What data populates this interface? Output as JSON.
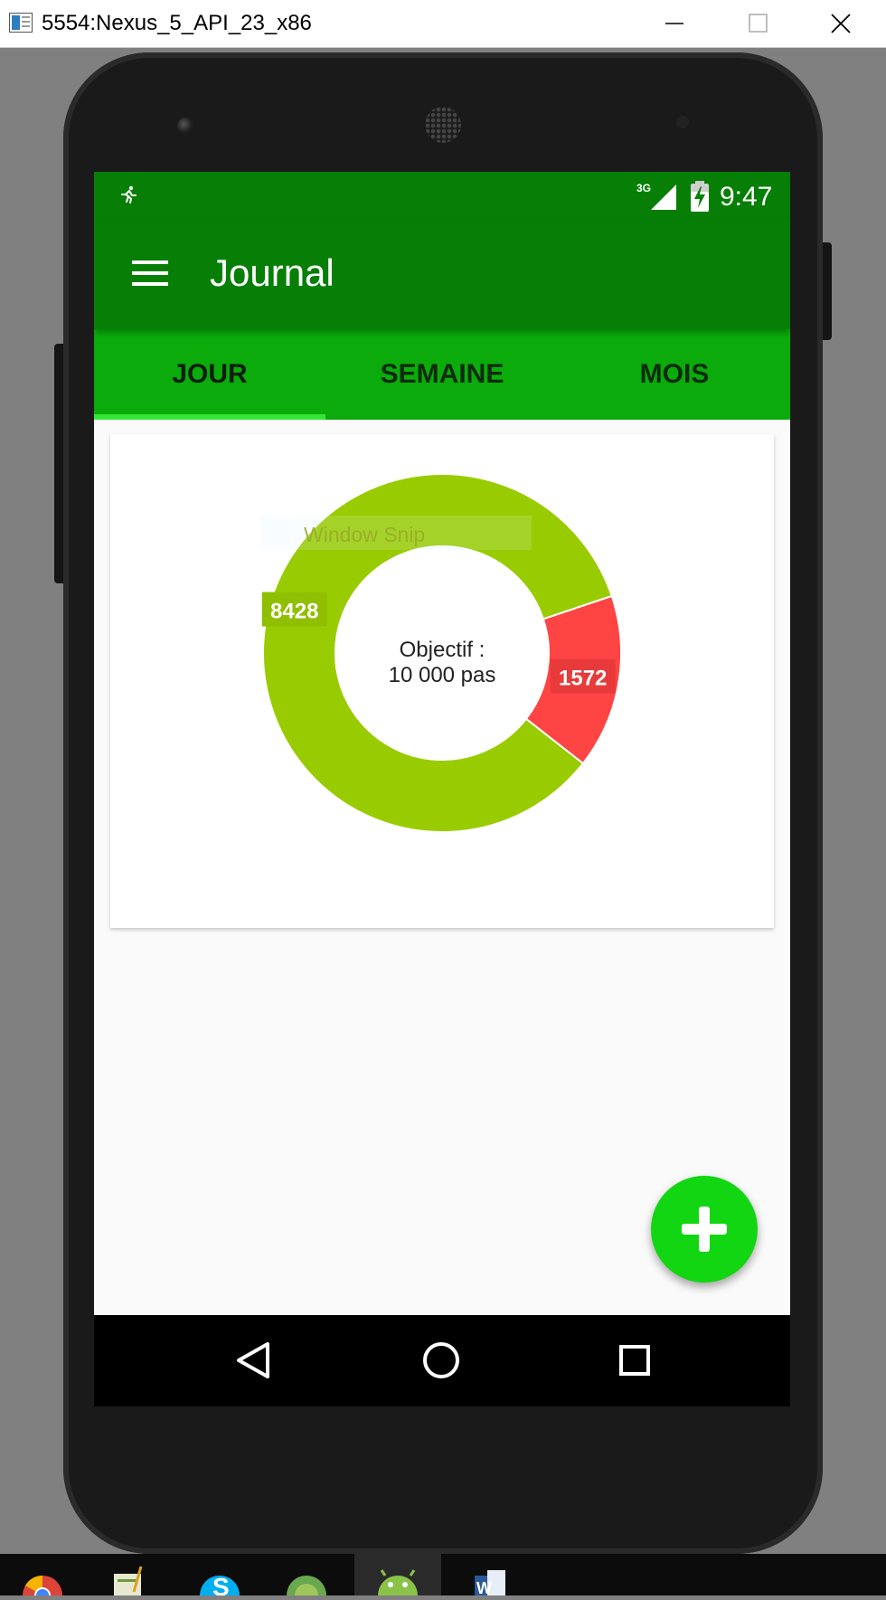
{
  "window": {
    "title": "5554:Nexus_5_API_23_x86",
    "controls": [
      "minimize-icon",
      "maximize-icon",
      "close-icon"
    ]
  },
  "statusbar": {
    "time": "9:47",
    "network": "3G",
    "icons": [
      "running-figure-icon",
      "signal-3g-icon",
      "battery-charging-icon"
    ]
  },
  "appbar": {
    "title": "Journal"
  },
  "tabs": [
    {
      "label": "JOUR",
      "selected": true
    },
    {
      "label": "SEMAINE",
      "selected": false
    },
    {
      "label": "MOIS",
      "selected": false
    }
  ],
  "chart_data": {
    "type": "pie",
    "style": "donut",
    "center_text_line1": "Objectif :",
    "center_text_line2": "10 000 pas",
    "slices": [
      {
        "label": "8428",
        "value": 8428,
        "color": "#99cc00"
      },
      {
        "label": "1572",
        "value": 1572,
        "color": "#ff4444"
      }
    ]
  },
  "overlay": {
    "text": "Window Snip"
  },
  "fab": {
    "icon": "add-icon"
  },
  "navbar": {
    "icons": [
      "back-icon",
      "home-icon",
      "recent-apps-icon"
    ]
  },
  "taskbar": {
    "icons": [
      "chrome-icon",
      "notepad-icon",
      "skype-icon",
      "android-studio-icon",
      "android-emulator-icon",
      "word-icon"
    ]
  },
  "colors": {
    "primary_dark": "#077f07",
    "tab_bar": "#0aab0a",
    "tab_indicator": "#33e833",
    "fab": "#11d611",
    "slice_green": "#99cc00",
    "slice_red": "#ff4444"
  }
}
